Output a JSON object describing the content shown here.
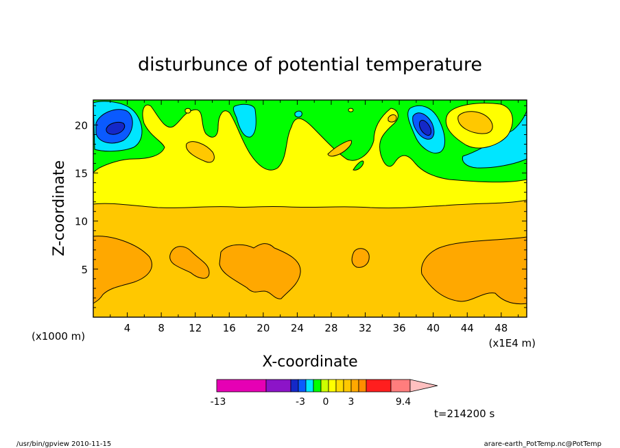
{
  "chart_data": {
    "type": "heatmap",
    "title": "disturbunce of potential temperature",
    "xlabel": "X-coordinate",
    "ylabel": "Z-coordinate",
    "x_unit_left": "(x1000 m)",
    "x_unit_right": "(x1E4 m)",
    "x_ticks": [
      "4",
      "8",
      "12",
      "16",
      "20",
      "24",
      "28",
      "32",
      "36",
      "40",
      "44",
      "48"
    ],
    "y_ticks": [
      "20",
      "15",
      "10",
      "5"
    ],
    "xlim": [
      0,
      51
    ],
    "ylim": [
      0,
      22.6
    ],
    "colorbar": {
      "colors": [
        "#e600b4",
        "#8c14c8",
        "#1428c8",
        "#0a5aff",
        "#00e6ff",
        "#00ff00",
        "#ccff00",
        "#ffff00",
        "#ffdc00",
        "#ffc800",
        "#ffa800",
        "#ff8c00",
        "#ff1e1e",
        "#ff7d7d",
        "#ffc0c0"
      ],
      "labels": [
        "-13",
        "-3",
        "0",
        "3",
        "9.4"
      ]
    },
    "time_label": "t=214200 s"
  },
  "footer": {
    "left": "/usr/bin/gpview   2010-11-15",
    "right": "arare-earth_PotTemp.nc@PotTemp"
  }
}
